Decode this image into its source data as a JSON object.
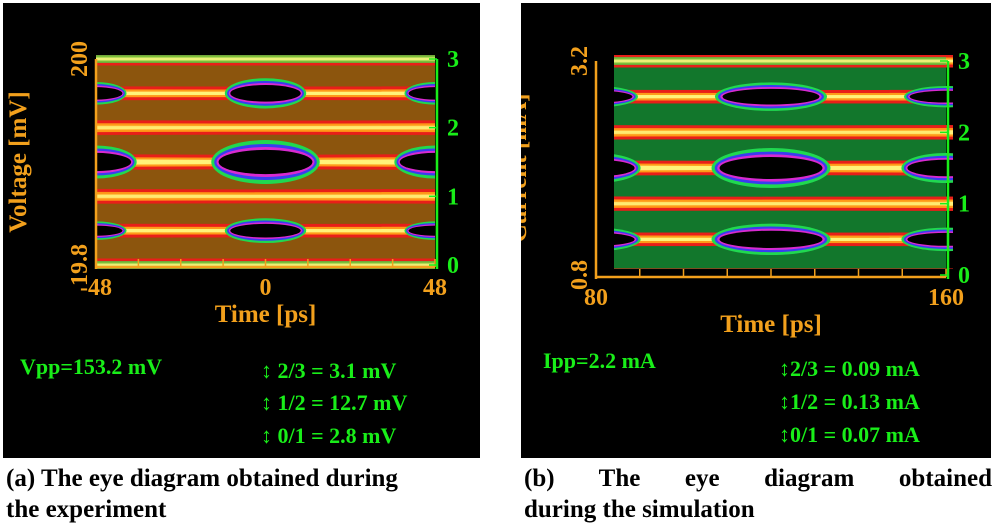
{
  "chart_data": [
    {
      "type": "heatmap",
      "subtype": "eye diagram",
      "x": {
        "label": "Time [ps]",
        "range": [
          -48,
          48
        ],
        "ticks": [
          "-48",
          "0",
          "48"
        ]
      },
      "y_left": {
        "label": "Voltage [mV]",
        "range": [
          19.8,
          200
        ],
        "ticks": [
          "19.8",
          "200"
        ]
      },
      "y_right": {
        "range": [
          0,
          3
        ],
        "ticks": [
          "0",
          "1",
          "2",
          "3"
        ]
      },
      "levels": 4,
      "annotations": [
        {
          "name": "Vpp",
          "text": "Vpp=153.2 mV",
          "value": 153.2,
          "unit": "mV"
        },
        {
          "name": "eye-2-3",
          "text": "↕ 2/3 = 3.1 mV",
          "value": 3.1,
          "unit": "mV"
        },
        {
          "name": "eye-1-2",
          "text": "↕ 1/2 = 12.7 mV",
          "value": 12.7,
          "unit": "mV"
        },
        {
          "name": "eye-0-1",
          "text": "↕ 0/1 = 2.8 mV",
          "value": 2.8,
          "unit": "mV"
        }
      ],
      "caption": [
        "(a) The eye diagram obtained during",
        "the experiment"
      ]
    },
    {
      "type": "heatmap",
      "subtype": "eye diagram",
      "x": {
        "label": "Time [ps]",
        "range": [
          80,
          160
        ],
        "ticks": [
          "80",
          "160"
        ]
      },
      "y_left": {
        "label": "Current [mA]",
        "range": [
          0.8,
          3.2
        ],
        "ticks": [
          "0.8",
          "3.2"
        ]
      },
      "y_right": {
        "range": [
          0,
          3
        ],
        "ticks": [
          "0",
          "1",
          "2",
          "3"
        ]
      },
      "levels": 4,
      "annotations": [
        {
          "name": "Ipp",
          "text": "Ipp=2.2 mA",
          "value": 2.2,
          "unit": "mA"
        },
        {
          "name": "eye-2-3",
          "text": "↕2/3 = 0.09 mA",
          "value": 0.09,
          "unit": "mA"
        },
        {
          "name": "eye-1-2",
          "text": "↕1/2 = 0.13 mA",
          "value": 0.13,
          "unit": "mA"
        },
        {
          "name": "eye-0-1",
          "text": "↕0/1 = 0.07 mA",
          "value": 0.07,
          "unit": "mA"
        }
      ],
      "caption": [
        "(b) The eye diagram obtained",
        "during the simulation"
      ]
    }
  ],
  "colors": {
    "axis": "#f2a01c",
    "right_axis": "#19ee19",
    "annotation": "#19ee19",
    "background": "#000000",
    "heat_hot": "#fff27a",
    "heat_warm": "#ff9a18",
    "heat_red": "#e8201a",
    "heat_magenta": "#d82ad0",
    "heat_blue": "#3a3cf0",
    "heat_green": "#20d850"
  }
}
